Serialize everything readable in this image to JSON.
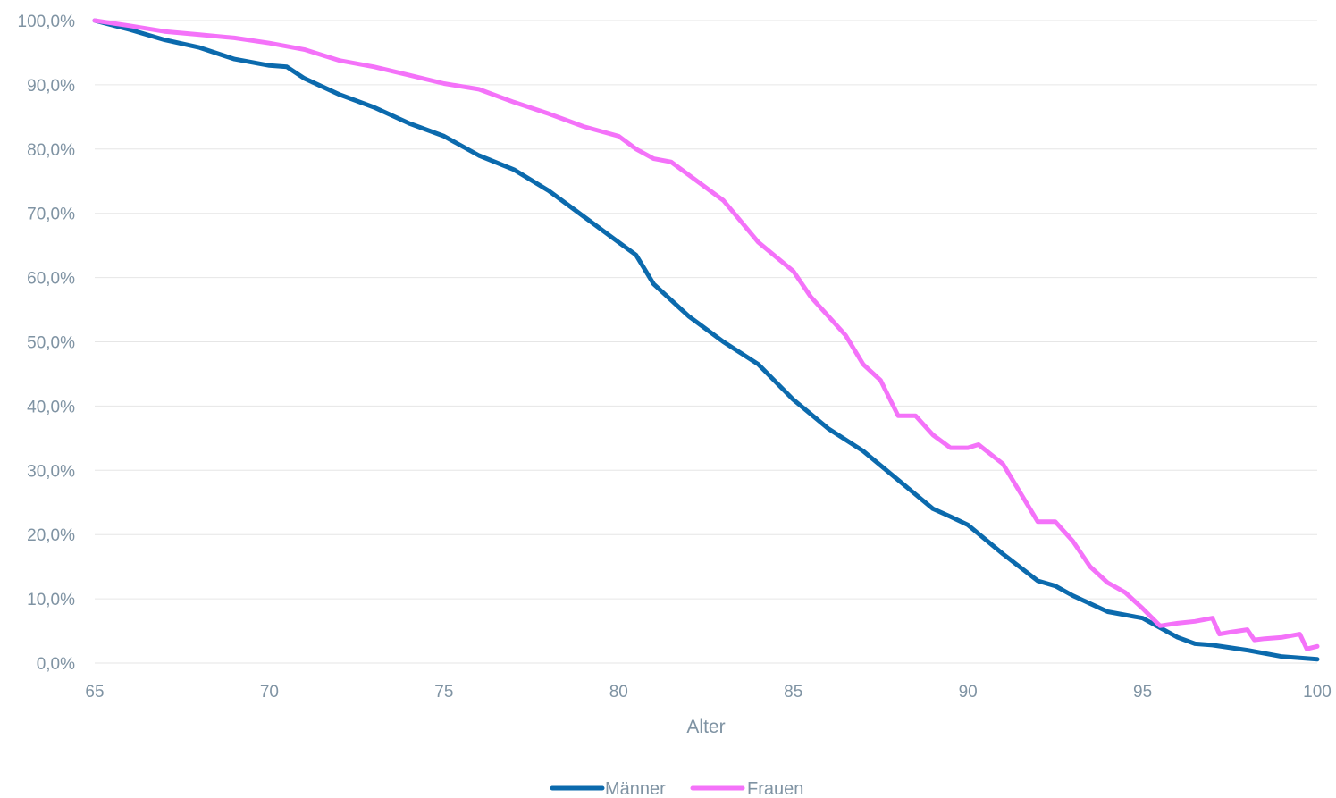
{
  "chart_data": {
    "type": "line",
    "title": "",
    "xlabel": "Alter",
    "ylabel": "",
    "xlim": [
      65,
      100
    ],
    "ylim": [
      0,
      100
    ],
    "grid": "horizontal",
    "legend_position": "bottom-center",
    "x_ticks": [
      "65",
      "70",
      "75",
      "80",
      "85",
      "90",
      "95",
      "100"
    ],
    "y_ticks": [
      "0,0%",
      "10,0%",
      "20,0%",
      "30,0%",
      "40,0%",
      "50,0%",
      "60,0%",
      "70,0%",
      "80,0%",
      "90,0%",
      "100,0%"
    ],
    "series": [
      {
        "name": "Männer",
        "color": "#0b6aad",
        "x": [
          65,
          66,
          67,
          68,
          69,
          70,
          70.5,
          71,
          72,
          73,
          74,
          75,
          76,
          77,
          78,
          79,
          80,
          80.5,
          81,
          82,
          83,
          84,
          85,
          86,
          87,
          88,
          89,
          89.5,
          90,
          91,
          92,
          92.5,
          93,
          94,
          95,
          96,
          96.5,
          97,
          98,
          99,
          100
        ],
        "y": [
          100,
          98.6,
          97.0,
          95.8,
          94.0,
          93.0,
          92.8,
          91.0,
          88.5,
          86.5,
          84.0,
          82.0,
          79.0,
          76.8,
          73.5,
          69.5,
          65.5,
          63.5,
          59.0,
          54.0,
          50.0,
          46.5,
          41.0,
          36.5,
          33.0,
          28.5,
          24.0,
          22.8,
          21.5,
          17.0,
          12.8,
          12.0,
          10.5,
          8.0,
          7.0,
          4.0,
          3.0,
          2.8,
          2.0,
          1.0,
          0.6
        ]
      },
      {
        "name": "Frauen",
        "color": "#f472f9",
        "x": [
          65,
          66,
          67,
          68,
          69,
          70,
          71,
          72,
          73,
          74,
          75,
          76,
          77,
          78,
          79,
          80,
          80.5,
          81,
          81.5,
          82,
          83,
          84,
          85,
          85.5,
          86,
          86.5,
          87,
          87.5,
          88,
          88.5,
          89,
          89.5,
          90,
          90.3,
          91,
          91.5,
          92,
          92.5,
          93,
          93.5,
          94,
          94.5,
          95,
          95.5,
          96,
          96.5,
          97,
          97.2,
          97.5,
          98,
          98.2,
          98.5,
          99,
          99.5,
          99.7,
          100
        ],
        "y": [
          100,
          99.2,
          98.3,
          97.8,
          97.3,
          96.5,
          95.5,
          93.8,
          92.8,
          91.5,
          90.2,
          89.3,
          87.3,
          85.5,
          83.5,
          82.0,
          80.0,
          78.5,
          78.0,
          76.0,
          72.0,
          65.5,
          61.0,
          57.0,
          54.0,
          51.0,
          46.5,
          44.0,
          38.5,
          38.5,
          35.5,
          33.5,
          33.5,
          34.0,
          31.0,
          26.5,
          22.0,
          22.0,
          19.0,
          15.0,
          12.5,
          11.0,
          8.5,
          5.8,
          6.2,
          6.5,
          7.0,
          4.5,
          4.8,
          5.2,
          3.6,
          3.8,
          4.0,
          4.5,
          2.2,
          2.6
        ]
      }
    ]
  }
}
